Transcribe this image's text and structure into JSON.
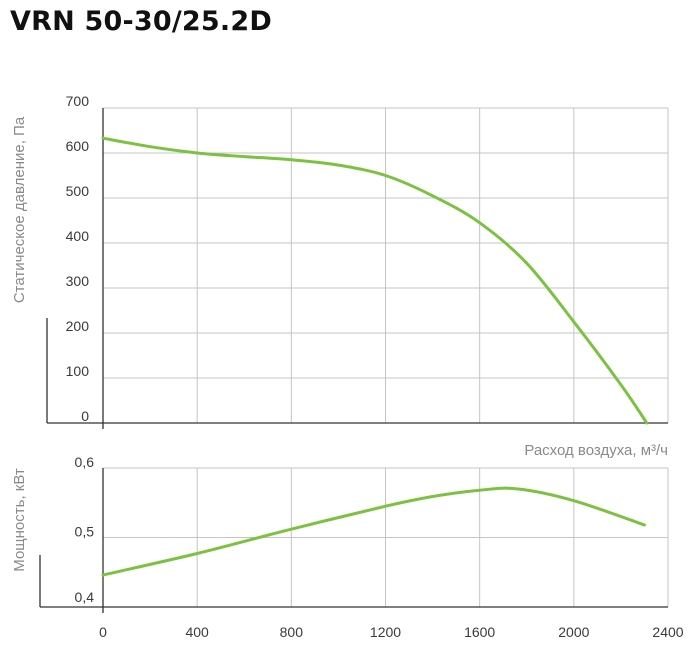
{
  "title": "VRN 50-30/25.2D",
  "colors": {
    "curve": "#7cc242"
  },
  "chart_data": [
    {
      "type": "line",
      "xlabel": "Расход воздуха, м³/ч",
      "ylabel": "Статическое давление, Па",
      "xlim": [
        0,
        2400
      ],
      "ylim": [
        0,
        700
      ],
      "grid": true,
      "x_ticks": [
        "0",
        "400",
        "800",
        "1200",
        "1600",
        "2000",
        "2400"
      ],
      "y_ticks": [
        "0",
        "100",
        "200",
        "300",
        "400",
        "500",
        "600",
        "700"
      ],
      "series": [
        {
          "x": [
            0,
            200,
            400,
            600,
            800,
            1000,
            1200,
            1400,
            1600,
            1800,
            2000,
            2200,
            2310
          ],
          "y": [
            633,
            614,
            600,
            592,
            585,
            573,
            550,
            505,
            445,
            355,
            225,
            85,
            0
          ]
        }
      ]
    },
    {
      "type": "line",
      "xlabel": "",
      "ylabel": "Мощность, кВт",
      "xlim": [
        0,
        2400
      ],
      "ylim": [
        0.4,
        0.6
      ],
      "grid": true,
      "x_ticks": [
        "0",
        "400",
        "800",
        "1200",
        "1600",
        "2000",
        "2400"
      ],
      "y_ticks": [
        "0,4",
        "0,5",
        "0,6"
      ],
      "series": [
        {
          "x": [
            0,
            400,
            800,
            1200,
            1400,
            1600,
            1760,
            2000,
            2300
          ],
          "y": [
            0.446,
            0.477,
            0.512,
            0.545,
            0.559,
            0.568,
            0.57,
            0.553,
            0.518
          ]
        }
      ]
    }
  ]
}
